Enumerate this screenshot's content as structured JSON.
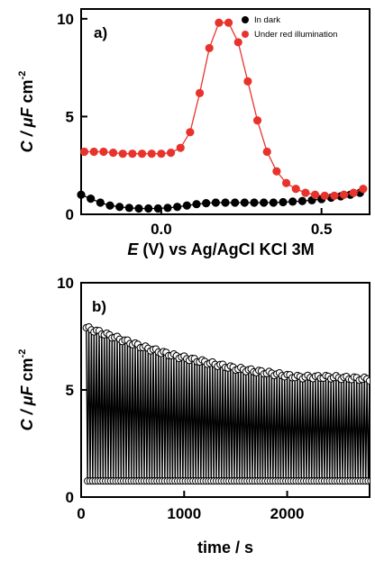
{
  "chart_data": [
    {
      "type": "line",
      "panel_label": "a)",
      "xlabel_italic": "E",
      "xlabel_rest": " (V) vs Ag/AgCl KCl 3M",
      "ylabel_italic": "C / μF",
      "ylabel_rest": " cm",
      "ylabel_sup": "-2",
      "xlim": [
        -0.25,
        0.65
      ],
      "ylim": [
        0,
        10.5
      ],
      "x_ticks": [
        0.0,
        0.5
      ],
      "x_tick_labels": [
        "0.0",
        "0.5"
      ],
      "y_ticks": [
        0,
        5,
        10
      ],
      "y_tick_labels": [
        "0",
        "5",
        "10"
      ],
      "legend_position": "top-right",
      "series": [
        {
          "name": "In dark",
          "color": "#000000",
          "marker": "circle",
          "x": [
            -0.25,
            -0.22,
            -0.19,
            -0.16,
            -0.13,
            -0.1,
            -0.07,
            -0.04,
            -0.01,
            0.02,
            0.05,
            0.08,
            0.11,
            0.14,
            0.17,
            0.2,
            0.23,
            0.26,
            0.29,
            0.32,
            0.35,
            0.38,
            0.41,
            0.44,
            0.47,
            0.5,
            0.53,
            0.56,
            0.59,
            0.62
          ],
          "y": [
            1.0,
            0.8,
            0.6,
            0.45,
            0.38,
            0.33,
            0.3,
            0.3,
            0.3,
            0.33,
            0.38,
            0.45,
            0.52,
            0.57,
            0.6,
            0.6,
            0.6,
            0.6,
            0.6,
            0.6,
            0.6,
            0.62,
            0.65,
            0.68,
            0.72,
            0.78,
            0.85,
            0.92,
            1.0,
            1.1
          ]
        },
        {
          "name": "Under red illumination",
          "color": "#e8332d",
          "marker": "circle",
          "x": [
            -0.24,
            -0.21,
            -0.18,
            -0.15,
            -0.12,
            -0.09,
            -0.06,
            -0.03,
            0.0,
            0.03,
            0.06,
            0.09,
            0.12,
            0.15,
            0.18,
            0.21,
            0.24,
            0.27,
            0.3,
            0.33,
            0.36,
            0.39,
            0.42,
            0.45,
            0.48,
            0.51,
            0.54,
            0.57,
            0.6,
            0.63
          ],
          "y": [
            3.2,
            3.2,
            3.2,
            3.15,
            3.1,
            3.1,
            3.1,
            3.1,
            3.1,
            3.15,
            3.4,
            4.2,
            6.2,
            8.5,
            9.8,
            9.8,
            8.8,
            6.8,
            4.8,
            3.2,
            2.2,
            1.6,
            1.3,
            1.1,
            1.0,
            0.95,
            0.95,
            1.0,
            1.1,
            1.3
          ]
        }
      ]
    },
    {
      "type": "line",
      "panel_label": "b)",
      "xlabel": "time / s",
      "ylabel_italic": "C / μF",
      "ylabel_rest": " cm",
      "ylabel_sup": "-2",
      "xlim": [
        0,
        2800
      ],
      "ylim": [
        0,
        10
      ],
      "x_ticks": [
        0,
        1000,
        2000
      ],
      "x_tick_labels": [
        "0",
        "1000",
        "2000"
      ],
      "y_ticks": [
        0,
        5,
        10
      ],
      "y_tick_labels": [
        "0",
        "5",
        "10"
      ],
      "series": [
        {
          "name": "",
          "color": "#000000",
          "marker": "open-circle",
          "description_of_pattern": "alternating",
          "x_start": 50,
          "x_end": 2800,
          "x_step": 25,
          "upper_envelope": [
            [
              50,
              7.9
            ],
            [
              300,
              7.5
            ],
            [
              600,
              7.0
            ],
            [
              900,
              6.6
            ],
            [
              1200,
              6.3
            ],
            [
              1500,
              6.0
            ],
            [
              1800,
              5.8
            ],
            [
              2100,
              5.6
            ],
            [
              2400,
              5.6
            ],
            [
              2800,
              5.5
            ]
          ],
          "lower_level": 0.75
        }
      ]
    }
  ]
}
